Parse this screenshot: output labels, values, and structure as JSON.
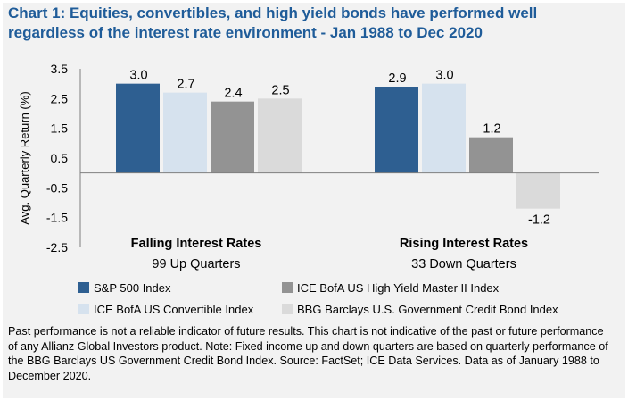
{
  "chart_data": {
    "type": "bar",
    "title": "Chart 1: Equities, convertibles, and high yield bonds have performed well regardless of the interest rate environment - Jan 1988 to Dec 2020",
    "ylabel": "Avg. Quarterly Return (%)",
    "ylim": [
      -2.5,
      3.5
    ],
    "yticks": [
      "3.5",
      "2.5",
      "1.5",
      "0.5",
      "-0.5",
      "-1.5",
      "-2.5"
    ],
    "grid": false,
    "legend_position": "bottom",
    "categories": [
      {
        "label": "Falling Interest Rates",
        "sublabel": "99 Up Quarters"
      },
      {
        "label": "Rising Interest Rates",
        "sublabel": "33 Down Quarters"
      }
    ],
    "series": [
      {
        "name": "S&P 500 Index",
        "color": "#2e5f91",
        "values": [
          3.0,
          2.9
        ],
        "labels": [
          "3.0",
          "2.9"
        ]
      },
      {
        "name": "ICE BofA US Convertible Index",
        "color": "#d6e2ee",
        "values": [
          2.7,
          3.0
        ],
        "labels": [
          "2.7",
          "3.0"
        ]
      },
      {
        "name": "ICE BofA US High Yield Master II Index",
        "color": "#939393",
        "values": [
          2.4,
          1.2
        ],
        "labels": [
          "2.4",
          "1.2"
        ]
      },
      {
        "name": "BBG Barclays U.S. Government Credit Bond Index",
        "color": "#dadada",
        "values": [
          2.5,
          -1.2
        ],
        "labels": [
          "2.5",
          "-1.2"
        ]
      }
    ]
  },
  "footnote": "Past performance is not a reliable indicator of future results. This chart is not indicative of the past or future performance of any Allianz Global Investors product. Note: Fixed income up and down quarters are based on quarterly performance of the BBG Barclays US Government Credit Bond Index. Source: FactSet; ICE Data Services. Data as of January 1988 to December 2020."
}
